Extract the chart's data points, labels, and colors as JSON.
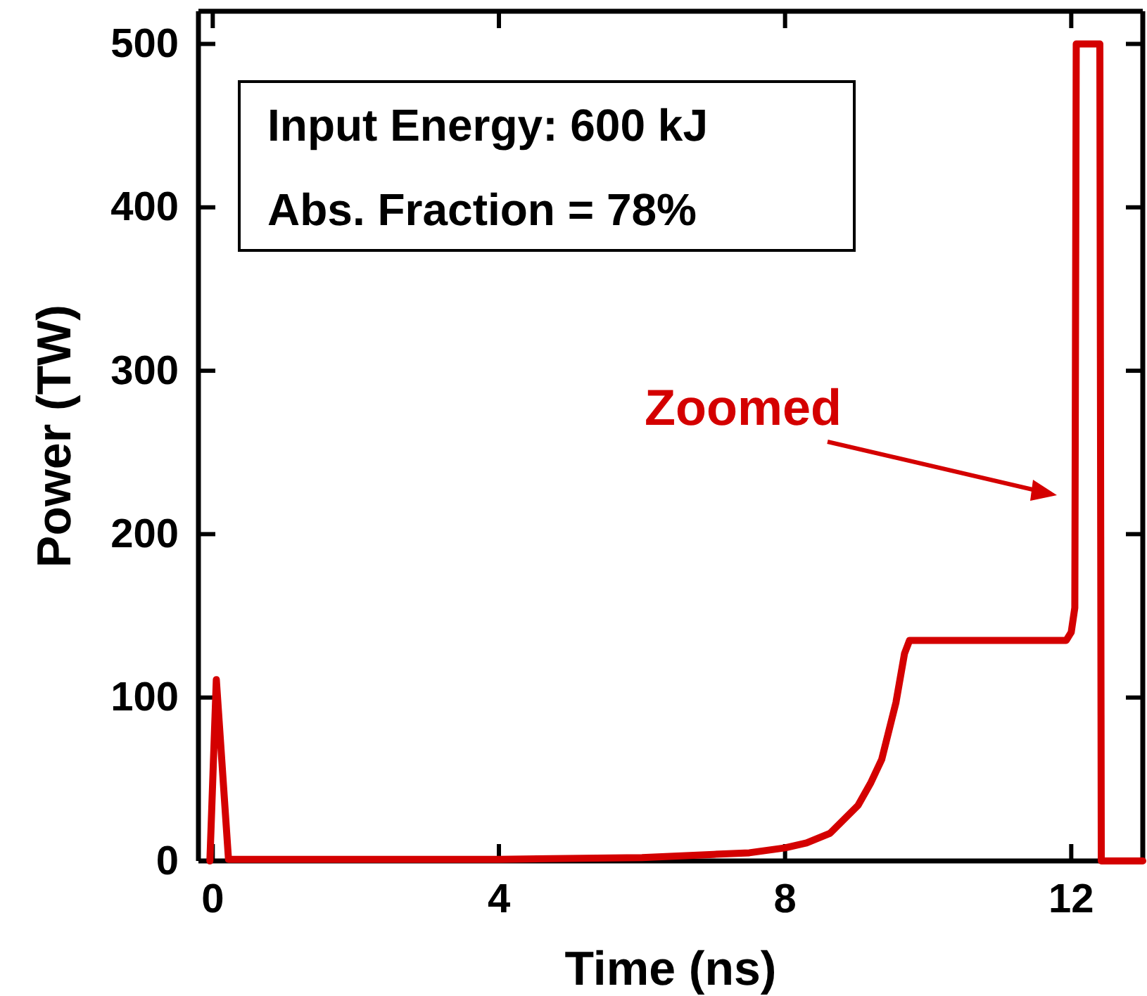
{
  "chart_data": {
    "type": "line",
    "xlabel": "Time (ns)",
    "ylabel": "Power (TW)",
    "xlim": [
      -0.2,
      13
    ],
    "ylim": [
      0,
      520
    ],
    "xticks": [
      0,
      4,
      8,
      12
    ],
    "yticks": [
      0,
      100,
      200,
      300,
      400,
      500
    ],
    "series": [
      {
        "color": "#d40000",
        "x": [
          -0.04,
          0.05,
          0.22,
          0.3,
          2,
          4,
          6,
          7,
          7.5,
          8,
          8.3,
          8.63,
          9.02,
          9.2,
          9.35,
          9.55,
          9.67,
          9.74,
          11.93,
          12.0,
          12.05,
          12.07,
          12.4,
          12.42,
          13
        ],
        "values": [
          0,
          111,
          1,
          1,
          1,
          1,
          2,
          4,
          5,
          8,
          11,
          17,
          34,
          48,
          62,
          97,
          127,
          135,
          135,
          140,
          155,
          500,
          500,
          0,
          0
        ]
      }
    ],
    "annotations": [
      "Input Energy: 600 kJ",
      "Abs. Fraction = 78%",
      "Zoomed"
    ],
    "grid": false,
    "line_style": "solid",
    "marker": "none"
  }
}
